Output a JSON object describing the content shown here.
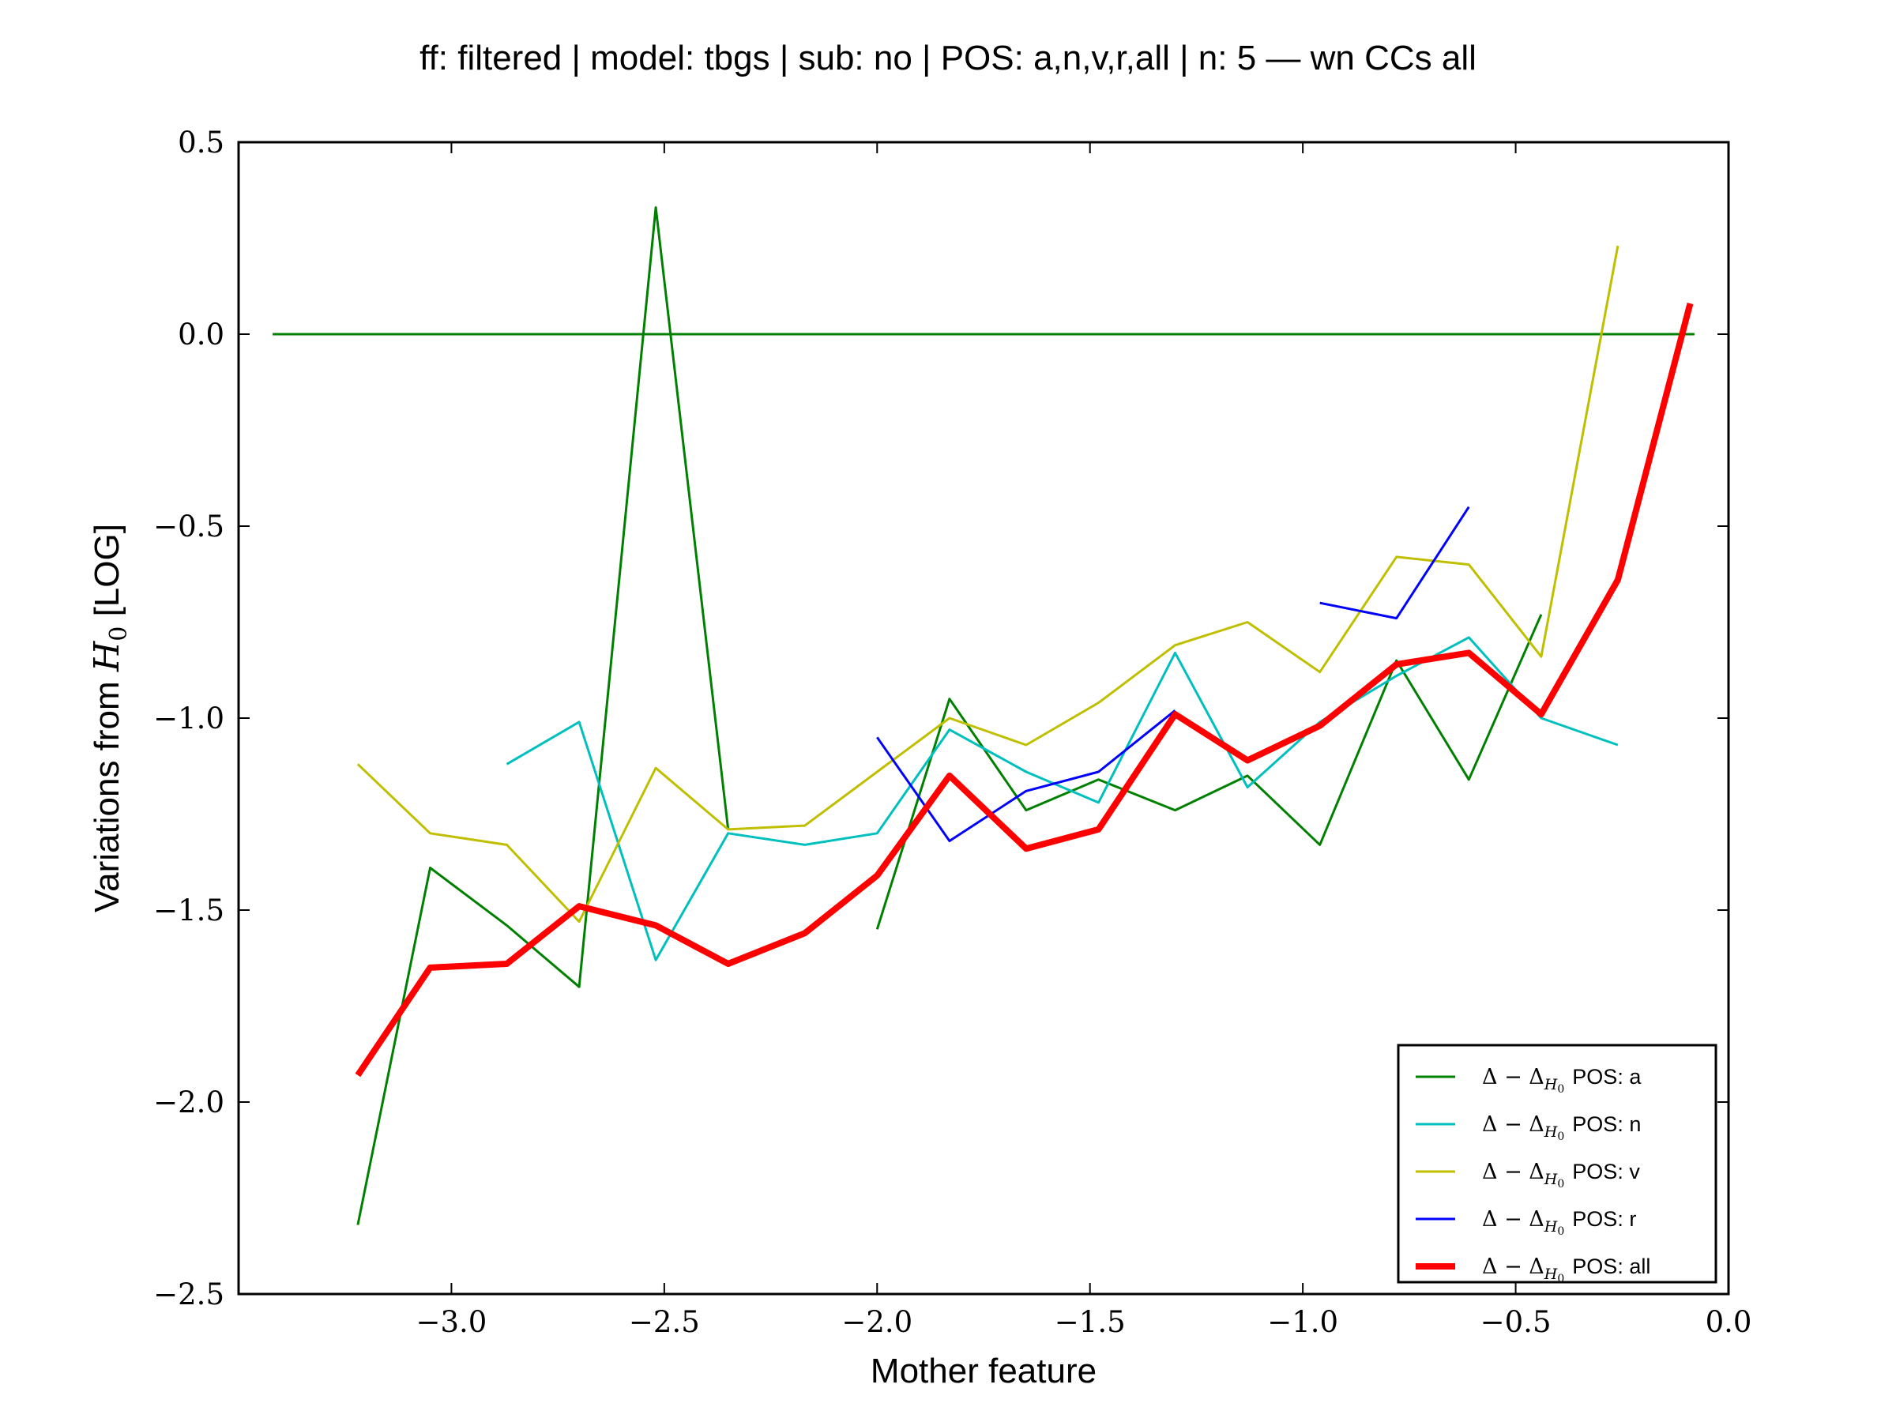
{
  "chart_data": {
    "type": "line",
    "title": "ff: filtered | model: tbgs | sub: no | POS: a,n,v,r,all | n: 5 — wn CCs all",
    "xlabel": "Mother feature",
    "ylabel_prefix": "Variations from ",
    "ylabel_symbol": "H",
    "ylabel_subscript": "0",
    "ylabel_suffix": " [LOG]",
    "xlim": [
      -3.5,
      0.0
    ],
    "ylim": [
      -2.5,
      0.5
    ],
    "xticks": [
      -3.0,
      -2.5,
      -2.0,
      -1.5,
      -1.0,
      -0.5,
      0.0
    ],
    "xtick_labels": [
      "−3.0",
      "−2.5",
      "−2.0",
      "−1.5",
      "−1.0",
      "−0.5",
      "0.0"
    ],
    "yticks": [
      0.5,
      0.0,
      -0.5,
      -1.0,
      -1.5,
      -2.0,
      -2.5
    ],
    "ytick_labels": [
      "0.5",
      "0.0",
      "−0.5",
      "−1.0",
      "−1.5",
      "−2.0",
      "−2.5"
    ],
    "grid": false,
    "legend_position": "lower-right",
    "reference_line": {
      "y": 0.0,
      "x": [
        -3.42,
        -0.08
      ],
      "color": "#008000"
    },
    "legend_prefix": "Δ − Δ",
    "legend_sub": "H",
    "legend_sub2": "0",
    "series": [
      {
        "name": "POS: a",
        "color": "#008000",
        "width": 3,
        "segments": [
          [
            [
              -3.22,
              -2.32
            ],
            [
              -3.05,
              -1.39
            ],
            [
              -2.87,
              -1.54
            ],
            [
              -2.7,
              -1.7
            ],
            [
              -2.52,
              0.33
            ],
            [
              -2.35,
              -1.29
            ]
          ],
          [
            [
              -2.0,
              -1.55
            ],
            [
              -1.83,
              -0.95
            ],
            [
              -1.65,
              -1.24
            ],
            [
              -1.48,
              -1.16
            ],
            [
              -1.3,
              -1.24
            ],
            [
              -1.13,
              -1.15
            ],
            [
              -0.96,
              -1.33
            ],
            [
              -0.78,
              -0.85
            ],
            [
              -0.61,
              -1.16
            ],
            [
              -0.44,
              -0.73
            ]
          ]
        ]
      },
      {
        "name": "POS: n",
        "color": "#00bfbf",
        "width": 3,
        "segments": [
          [
            [
              -2.87,
              -1.12
            ],
            [
              -2.7,
              -1.01
            ],
            [
              -2.52,
              -1.63
            ],
            [
              -2.35,
              -1.3
            ],
            [
              -2.17,
              -1.33
            ],
            [
              -2.0,
              -1.3
            ],
            [
              -1.83,
              -1.03
            ],
            [
              -1.65,
              -1.14
            ],
            [
              -1.48,
              -1.22
            ],
            [
              -1.3,
              -0.83
            ],
            [
              -1.13,
              -1.18
            ],
            [
              -0.96,
              -1.01
            ],
            [
              -0.78,
              -0.89
            ],
            [
              -0.61,
              -0.79
            ],
            [
              -0.44,
              -1.0
            ],
            [
              -0.26,
              -1.07
            ]
          ]
        ]
      },
      {
        "name": "POS: v",
        "color": "#bfbf00",
        "width": 3,
        "segments": [
          [
            [
              -3.22,
              -1.12
            ],
            [
              -3.05,
              -1.3
            ],
            [
              -2.87,
              -1.33
            ],
            [
              -2.7,
              -1.53
            ],
            [
              -2.52,
              -1.13
            ],
            [
              -2.35,
              -1.29
            ],
            [
              -2.17,
              -1.28
            ],
            [
              -2.0,
              -1.14
            ],
            [
              -1.83,
              -1.0
            ],
            [
              -1.65,
              -1.07
            ],
            [
              -1.48,
              -0.96
            ],
            [
              -1.3,
              -0.81
            ],
            [
              -1.13,
              -0.75
            ],
            [
              -0.96,
              -0.88
            ],
            [
              -0.78,
              -0.58
            ],
            [
              -0.61,
              -0.6
            ],
            [
              -0.44,
              -0.84
            ],
            [
              -0.26,
              0.23
            ]
          ]
        ]
      },
      {
        "name": "POS: r",
        "color": "#0000ff",
        "width": 3,
        "segments": [
          [
            [
              -2.0,
              -1.05
            ],
            [
              -1.83,
              -1.32
            ],
            [
              -1.65,
              -1.19
            ],
            [
              -1.48,
              -1.14
            ],
            [
              -1.3,
              -0.98
            ]
          ],
          [
            [
              -0.96,
              -0.7
            ],
            [
              -0.78,
              -0.74
            ],
            [
              -0.61,
              -0.45
            ]
          ]
        ]
      },
      {
        "name": "POS: all",
        "color": "#ff0000",
        "width": 8,
        "segments": [
          [
            [
              -3.22,
              -1.93
            ],
            [
              -3.05,
              -1.65
            ],
            [
              -2.87,
              -1.64
            ],
            [
              -2.7,
              -1.49
            ],
            [
              -2.52,
              -1.54
            ],
            [
              -2.35,
              -1.64
            ],
            [
              -2.17,
              -1.56
            ],
            [
              -2.0,
              -1.41
            ],
            [
              -1.83,
              -1.15
            ],
            [
              -1.65,
              -1.34
            ],
            [
              -1.48,
              -1.29
            ],
            [
              -1.3,
              -0.99
            ],
            [
              -1.13,
              -1.11
            ],
            [
              -0.96,
              -1.02
            ],
            [
              -0.78,
              -0.86
            ],
            [
              -0.61,
              -0.83
            ],
            [
              -0.44,
              -0.99
            ],
            [
              -0.26,
              -0.64
            ],
            [
              -0.09,
              0.08
            ]
          ]
        ]
      }
    ]
  }
}
